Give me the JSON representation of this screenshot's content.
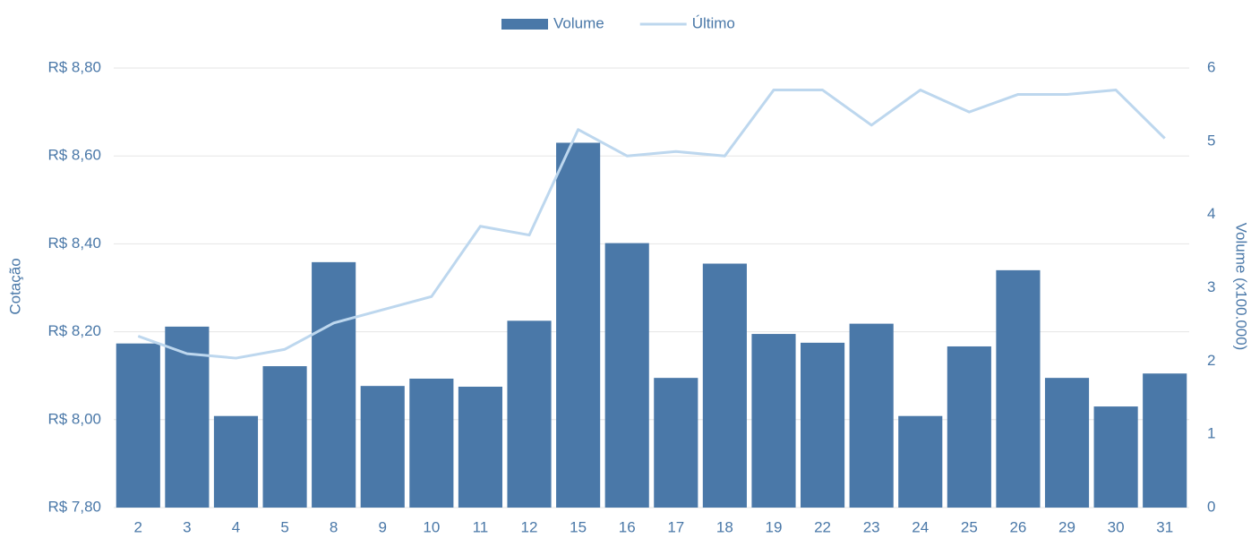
{
  "chart_data": {
    "type": "bar_line",
    "y_axis_label": "Cotação",
    "y2_axis_label": "Volume (x100.000)",
    "categories": [
      "2",
      "3",
      "4",
      "5",
      "8",
      "9",
      "10",
      "11",
      "12",
      "15",
      "16",
      "17",
      "18",
      "19",
      "22",
      "23",
      "24",
      "25",
      "26",
      "29",
      "30",
      "31"
    ],
    "series": [
      {
        "name": "Volume",
        "type": "bar",
        "axis": "y2",
        "color": "#4a78a8",
        "values": [
          2.24,
          2.47,
          1.25,
          1.93,
          3.35,
          1.66,
          1.76,
          1.65,
          2.55,
          4.98,
          3.61,
          1.77,
          3.33,
          2.37,
          2.25,
          2.51,
          1.25,
          2.2,
          3.24,
          1.77,
          1.38,
          1.83
        ]
      },
      {
        "name": "Último",
        "type": "line",
        "axis": "y",
        "color": "#bdd7ee",
        "values": [
          8.19,
          8.15,
          8.14,
          8.16,
          8.22,
          8.25,
          8.28,
          8.44,
          8.42,
          8.66,
          8.6,
          8.61,
          8.6,
          8.75,
          8.75,
          8.67,
          8.75,
          8.7,
          8.74,
          8.74,
          8.75,
          8.64
        ]
      }
    ],
    "ylim": [
      7.8,
      8.8
    ],
    "yticks": [
      {
        "value": 7.8,
        "label": "R$ 7,80"
      },
      {
        "value": 8.0,
        "label": "R$ 8,00"
      },
      {
        "value": 8.2,
        "label": "R$ 8,20"
      },
      {
        "value": 8.4,
        "label": "R$ 8,40"
      },
      {
        "value": 8.6,
        "label": "R$ 8,60"
      },
      {
        "value": 8.8,
        "label": "R$ 8,80"
      }
    ],
    "y2lim": [
      0,
      6
    ],
    "y2ticks": [
      0,
      1,
      2,
      3,
      4,
      5,
      6
    ],
    "grid": true,
    "legend": "top"
  }
}
